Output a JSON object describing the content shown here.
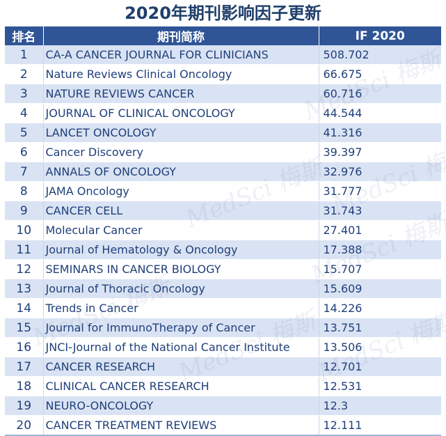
{
  "title": "2020年期刊影响因子更新",
  "headers": {
    "rank": "排名",
    "journal": "期刊简称",
    "if": "IF 2020"
  },
  "rows": [
    {
      "rank": "1",
      "journal": "CA-A CANCER JOURNAL FOR CLINICIANS",
      "if": "508.702"
    },
    {
      "rank": "2",
      "journal": "Nature Reviews Clinical Oncology",
      "if": "66.675"
    },
    {
      "rank": "3",
      "journal": "NATURE REVIEWS CANCER",
      "if": "60.716"
    },
    {
      "rank": "4",
      "journal": "JOURNAL OF CLINICAL ONCOLOGY",
      "if": "44.544"
    },
    {
      "rank": "5",
      "journal": "LANCET ONCOLOGY",
      "if": "41.316"
    },
    {
      "rank": "6",
      "journal": "Cancer Discovery",
      "if": "39.397"
    },
    {
      "rank": "7",
      "journal": "ANNALS OF ONCOLOGY",
      "if": "32.976"
    },
    {
      "rank": "8",
      "journal": "JAMA Oncology",
      "if": "31.777"
    },
    {
      "rank": "9",
      "journal": "CANCER CELL",
      "if": "31.743"
    },
    {
      "rank": "10",
      "journal": "Molecular Cancer",
      "if": "27.401"
    },
    {
      "rank": "11",
      "journal": "Journal of Hematology & Oncology",
      "if": "17.388"
    },
    {
      "rank": "12",
      "journal": "SEMINARS IN CANCER BIOLOGY",
      "if": "15.707"
    },
    {
      "rank": "13",
      "journal": "Journal of Thoracic Oncology",
      "if": "15.609"
    },
    {
      "rank": "14",
      "journal": "Trends in Cancer",
      "if": "14.226"
    },
    {
      "rank": "15",
      "journal": "Journal for ImmunoTherapy of Cancer",
      "if": "13.751"
    },
    {
      "rank": "16",
      "journal": "JNCI-Journal of the National Cancer Institute",
      "if": "13.506"
    },
    {
      "rank": "17",
      "journal": "CANCER RESEARCH",
      "if": "12.701"
    },
    {
      "rank": "18",
      "journal": "CLINICAL CANCER RESEARCH",
      "if": "12.531"
    },
    {
      "rank": "19",
      "journal": "NEURO-ONCOLOGY",
      "if": "12.3"
    },
    {
      "rank": "20",
      "journal": "CANCER TREATMENT REVIEWS",
      "if": "12.111"
    }
  ],
  "watermark": "MedSci 梅斯"
}
